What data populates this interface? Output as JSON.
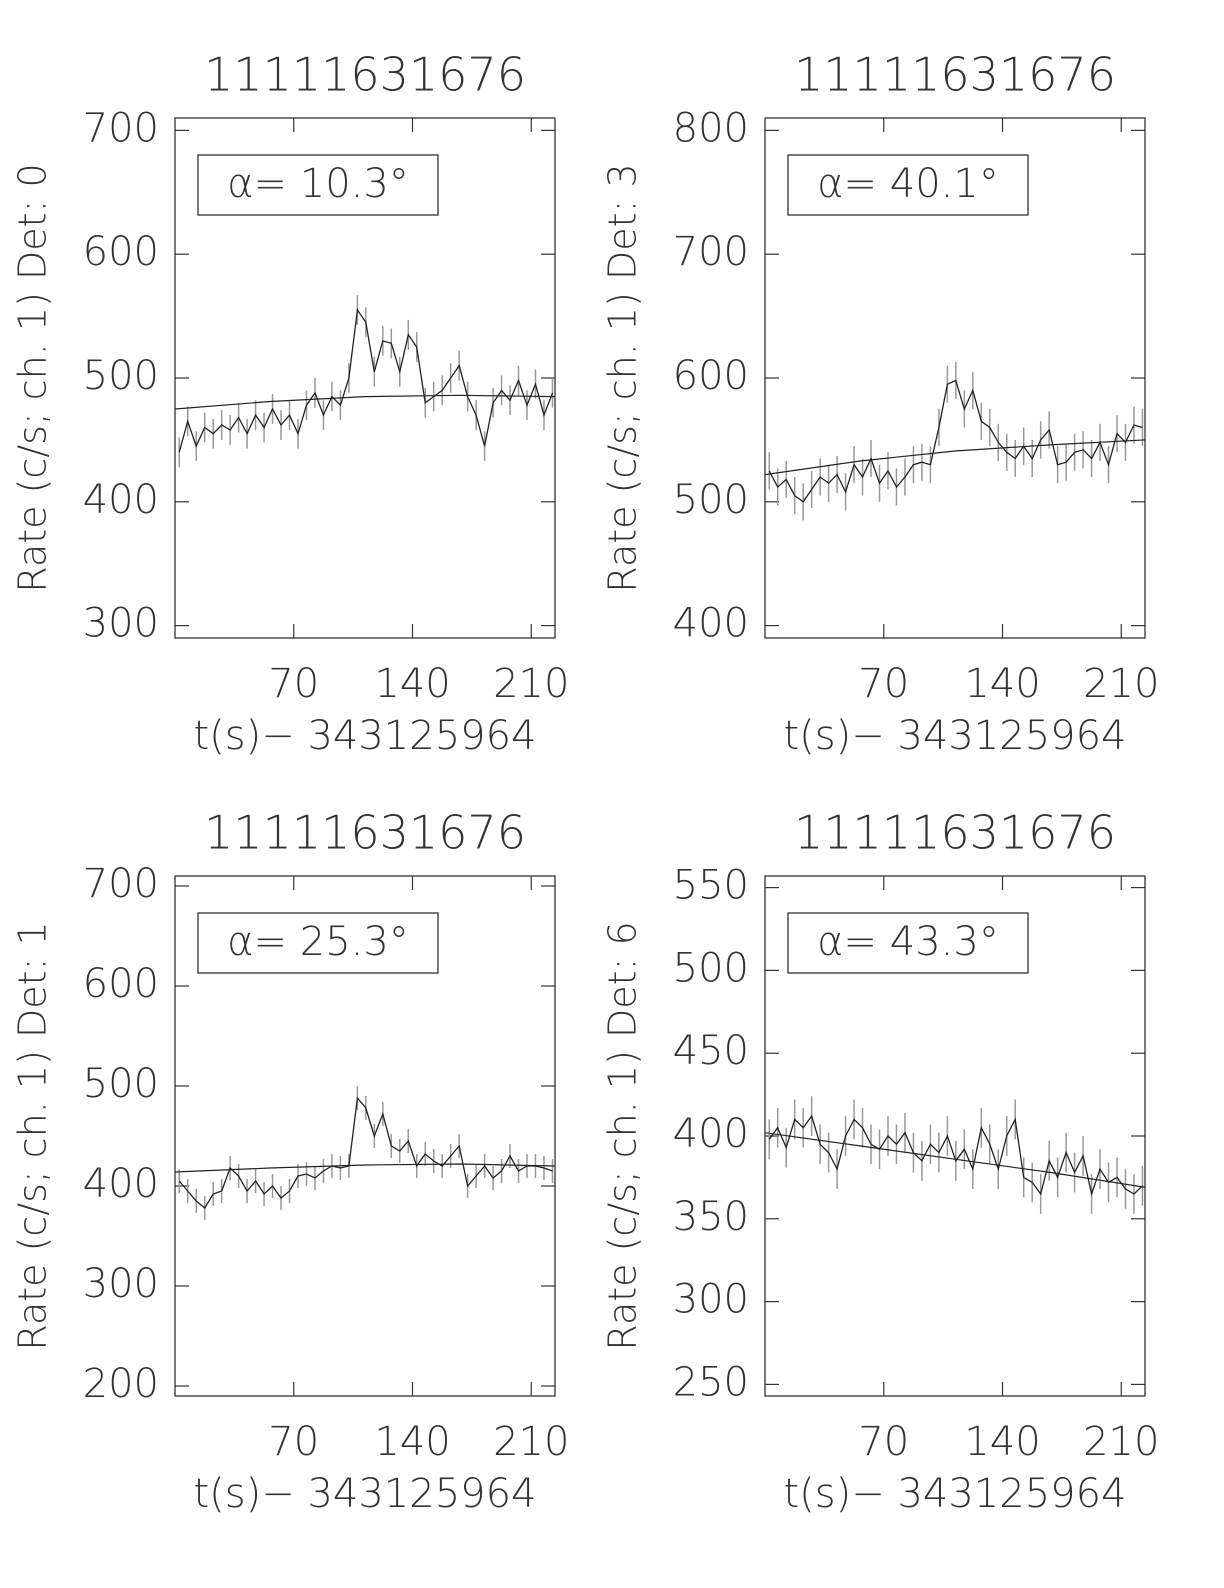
{
  "chart_data": [
    {
      "type": "line",
      "title": "11111631676",
      "annotation": "α= 10.3°",
      "ylabel": "Rate (c/s; ch. 1) Det: 0",
      "xlabel": "t(s)− 343125964",
      "x": [
        2.5,
        7.5,
        12.5,
        17.5,
        22.5,
        27.5,
        32.5,
        37.5,
        42.5,
        47.5,
        52.5,
        57.5,
        62.5,
        67.5,
        72.5,
        77.5,
        82.5,
        87.5,
        92.5,
        97.5,
        102.5,
        107.5,
        112.5,
        117.5,
        122.5,
        127.5,
        132.5,
        137.5,
        142.5,
        147.5,
        152.5,
        157.5,
        162.5,
        167.5,
        172.5,
        177.5,
        182.5,
        187.5,
        192.5,
        197.5,
        202.5,
        207.5,
        212.5,
        217.5,
        222.5
      ],
      "series": [
        {
          "color": "#222222",
          "yerr": 12,
          "values": [
            440,
            465,
            445,
            460,
            455,
            462,
            458,
            468,
            455,
            470,
            460,
            475,
            462,
            470,
            455,
            478,
            488,
            470,
            485,
            478,
            500,
            555,
            545,
            505,
            530,
            528,
            505,
            535,
            525,
            480,
            485,
            490,
            500,
            510,
            485,
            470,
            445,
            480,
            490,
            482,
            498,
            478,
            495,
            470,
            488
          ]
        }
      ],
      "fit": {
        "x": [
          0,
          56,
          112,
          168,
          224
        ],
        "values": [
          475,
          481,
          485,
          486,
          485
        ]
      },
      "xlim": [
        0,
        224
      ],
      "xticks": [
        70,
        140,
        210
      ],
      "ylim": [
        290,
        710
      ],
      "yticks": [
        300,
        400,
        500,
        600,
        700
      ]
    },
    {
      "type": "line",
      "title": "11111631676",
      "annotation": "α= 40.1°",
      "ylabel": "Rate (c/s; ch. 1) Det: 3",
      "xlabel": "t(s)− 343125964",
      "x": [
        2.5,
        7.5,
        12.5,
        17.5,
        22.5,
        27.5,
        32.5,
        37.5,
        42.5,
        47.5,
        52.5,
        57.5,
        62.5,
        67.5,
        72.5,
        77.5,
        82.5,
        87.5,
        92.5,
        97.5,
        102.5,
        107.5,
        112.5,
        117.5,
        122.5,
        127.5,
        132.5,
        137.5,
        142.5,
        147.5,
        152.5,
        157.5,
        162.5,
        167.5,
        172.5,
        177.5,
        182.5,
        187.5,
        192.5,
        197.5,
        202.5,
        207.5,
        212.5,
        217.5,
        222.5
      ],
      "series": [
        {
          "color": "#222222",
          "yerr": 15,
          "values": [
            525,
            512,
            518,
            505,
            500,
            510,
            520,
            515,
            522,
            508,
            530,
            520,
            535,
            515,
            525,
            512,
            520,
            530,
            532,
            530,
            560,
            595,
            598,
            575,
            590,
            565,
            560,
            548,
            540,
            535,
            545,
            535,
            550,
            558,
            530,
            532,
            540,
            542,
            535,
            548,
            530,
            555,
            548,
            562,
            560
          ]
        }
      ],
      "fit": {
        "x": [
          0,
          56,
          112,
          168,
          224
        ],
        "values": [
          522,
          533,
          541,
          546,
          550
        ]
      },
      "xlim": [
        0,
        224
      ],
      "xticks": [
        70,
        140,
        210
      ],
      "ylim": [
        390,
        810
      ],
      "yticks": [
        400,
        500,
        600,
        700,
        800
      ]
    },
    {
      "type": "line",
      "title": "11111631676",
      "annotation": "α= 25.3°",
      "ylabel": "Rate (c/s; ch. 1) Det: 1",
      "xlabel": "t(s)− 343125964",
      "x": [
        2.5,
        7.5,
        12.5,
        17.5,
        22.5,
        27.5,
        32.5,
        37.5,
        42.5,
        47.5,
        52.5,
        57.5,
        62.5,
        67.5,
        72.5,
        77.5,
        82.5,
        87.5,
        92.5,
        97.5,
        102.5,
        107.5,
        112.5,
        117.5,
        122.5,
        127.5,
        132.5,
        137.5,
        142.5,
        147.5,
        152.5,
        157.5,
        162.5,
        167.5,
        172.5,
        177.5,
        182.5,
        187.5,
        192.5,
        197.5,
        202.5,
        207.5,
        212.5,
        217.5,
        222.5
      ],
      "series": [
        {
          "color": "#222222",
          "yerr": 12,
          "values": [
            405,
            395,
            385,
            378,
            392,
            395,
            418,
            410,
            395,
            405,
            392,
            400,
            388,
            395,
            410,
            412,
            408,
            415,
            420,
            418,
            420,
            488,
            478,
            450,
            472,
            440,
            435,
            445,
            420,
            432,
            425,
            420,
            430,
            440,
            400,
            410,
            420,
            408,
            415,
            430,
            415,
            420,
            420,
            418,
            415
          ]
        }
      ],
      "fit": {
        "x": [
          0,
          56,
          112,
          168,
          224
        ],
        "values": [
          414,
          418,
          421,
          422,
          420
        ]
      },
      "xlim": [
        0,
        224
      ],
      "xticks": [
        70,
        140,
        210
      ],
      "ylim": [
        190,
        710
      ],
      "yticks": [
        200,
        300,
        400,
        500,
        600,
        700
      ]
    },
    {
      "type": "line",
      "title": "11111631676",
      "annotation": "α= 43.3°",
      "ylabel": "Rate (c/s; ch. 1) Det: 6",
      "xlabel": "t(s)− 343125964",
      "x": [
        2.5,
        7.5,
        12.5,
        17.5,
        22.5,
        27.5,
        32.5,
        37.5,
        42.5,
        47.5,
        52.5,
        57.5,
        62.5,
        67.5,
        72.5,
        77.5,
        82.5,
        87.5,
        92.5,
        97.5,
        102.5,
        107.5,
        112.5,
        117.5,
        122.5,
        127.5,
        132.5,
        137.5,
        142.5,
        147.5,
        152.5,
        157.5,
        162.5,
        167.5,
        172.5,
        177.5,
        182.5,
        187.5,
        192.5,
        197.5,
        202.5,
        207.5,
        212.5,
        217.5,
        222.5
      ],
      "series": [
        {
          "color": "#222222",
          "yerr": 12,
          "values": [
            398,
            405,
            393,
            410,
            405,
            412,
            395,
            390,
            380,
            400,
            410,
            405,
            395,
            392,
            400,
            395,
            402,
            390,
            385,
            395,
            390,
            400,
            385,
            392,
            380,
            405,
            395,
            380,
            400,
            410,
            375,
            372,
            365,
            385,
            375,
            390,
            378,
            388,
            365,
            380,
            372,
            375,
            368,
            365,
            370
          ]
        }
      ],
      "fit": {
        "x": [
          0,
          56,
          112,
          168,
          224
        ],
        "values": [
          402,
          394,
          386,
          378,
          369
        ]
      },
      "xlim": [
        0,
        224
      ],
      "xticks": [
        70,
        140,
        210
      ],
      "ylim": [
        243,
        557
      ],
      "yticks": [
        250,
        300,
        350,
        400,
        450,
        500,
        550
      ]
    }
  ]
}
